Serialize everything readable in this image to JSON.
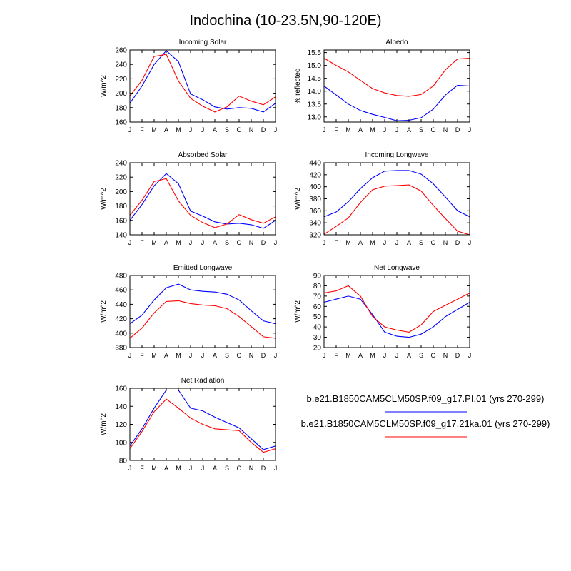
{
  "figure": {
    "title": "Indochina (10-23.5N,90-120E)"
  },
  "legend": {
    "entries": [
      {
        "label": "b.e21.B1850CAM5CLM50SP.f09_g17.PI.01 (yrs 270-299)",
        "color": "#0000ff"
      },
      {
        "label": "b.e21.B1850CAM5CLM50SP.f09_g17.21ka.01 (yrs 270-299)",
        "color": "#ff0000"
      }
    ]
  },
  "chart_data": [
    {
      "type": "line",
      "title": "Incoming Solar",
      "ylabel": "W/m^2",
      "ylim": [
        160,
        260
      ],
      "yticks": [
        160,
        180,
        200,
        220,
        240,
        260
      ],
      "ytick_labels": [
        "160",
        "180",
        "200",
        "220",
        "240",
        "260"
      ],
      "categories": [
        "J",
        "F",
        "M",
        "A",
        "M",
        "J",
        "J",
        "A",
        "S",
        "O",
        "N",
        "D",
        "J"
      ],
      "series": [
        {
          "name": "b.e21.B1850CAM5CLM50SP.f09_g17.PI.01 (yrs 270-299)",
          "color": "#0000ff",
          "values": [
            186,
            210,
            240,
            259,
            244,
            199,
            191,
            181,
            178,
            180,
            179,
            174,
            186
          ]
        },
        {
          "name": "b.e21.B1850CAM5CLM50SP.f09_g17.21ka.01 (yrs 270-299)",
          "color": "#ff0000",
          "values": [
            196,
            218,
            251,
            254,
            217,
            193,
            182,
            174,
            181,
            196,
            189,
            184,
            195
          ]
        }
      ]
    },
    {
      "type": "line",
      "title": "Albedo",
      "ylabel": "% reflected",
      "ylim": [
        12.8,
        15.6
      ],
      "yticks": [
        13.0,
        13.5,
        14.0,
        14.5,
        15.0,
        15.5
      ],
      "ytick_labels": [
        "13.0",
        "13.5",
        "14.0",
        "14.5",
        "15.0",
        "15.5"
      ],
      "categories": [
        "J",
        "F",
        "M",
        "A",
        "M",
        "J",
        "J",
        "A",
        "S",
        "O",
        "N",
        "D",
        "J"
      ],
      "series": [
        {
          "name": "b.e21.B1850CAM5CLM50SP.f09_g17.PI.01 (yrs 270-299)",
          "color": "#0000ff",
          "values": [
            14.2,
            13.85,
            13.5,
            13.25,
            13.1,
            12.98,
            12.85,
            12.87,
            12.97,
            13.3,
            13.85,
            14.23,
            14.2
          ]
        },
        {
          "name": "b.e21.B1850CAM5CLM50SP.f09_g17.21ka.01 (yrs 270-299)",
          "color": "#ff0000",
          "values": [
            15.28,
            15.0,
            14.75,
            14.42,
            14.1,
            13.93,
            13.83,
            13.8,
            13.87,
            14.2,
            14.83,
            15.25,
            15.28
          ]
        }
      ]
    },
    {
      "type": "line",
      "title": "Absorbed Solar",
      "ylabel": "W/m^2",
      "ylim": [
        140,
        240
      ],
      "yticks": [
        140,
        160,
        180,
        200,
        220,
        240
      ],
      "ytick_labels": [
        "140",
        "160",
        "180",
        "200",
        "220",
        "240"
      ],
      "categories": [
        "J",
        "F",
        "M",
        "A",
        "M",
        "J",
        "J",
        "A",
        "S",
        "O",
        "N",
        "D",
        "J"
      ],
      "series": [
        {
          "name": "b.e21.B1850CAM5CLM50SP.f09_g17.PI.01 (yrs 270-299)",
          "color": "#0000ff",
          "values": [
            160,
            182,
            208,
            225,
            211,
            173,
            166,
            158,
            155,
            156,
            154,
            149,
            160
          ]
        },
        {
          "name": "b.e21.B1850CAM5CLM50SP.f09_g17.21ka.01 (yrs 270-299)",
          "color": "#ff0000",
          "values": [
            167,
            188,
            214,
            218,
            187,
            167,
            157,
            150,
            155,
            168,
            161,
            156,
            165
          ]
        }
      ]
    },
    {
      "type": "line",
      "title": "Incoming Longwave",
      "ylabel": "W/m^2",
      "ylim": [
        320,
        440
      ],
      "yticks": [
        320,
        340,
        360,
        380,
        400,
        420,
        440
      ],
      "ytick_labels": [
        "320",
        "340",
        "360",
        "380",
        "400",
        "420",
        "440"
      ],
      "categories": [
        "J",
        "F",
        "M",
        "A",
        "M",
        "J",
        "J",
        "A",
        "S",
        "O",
        "N",
        "D",
        "J"
      ],
      "series": [
        {
          "name": "b.e21.B1850CAM5CLM50SP.f09_g17.PI.01 (yrs 270-299)",
          "color": "#0000ff",
          "values": [
            350,
            358,
            375,
            397,
            415,
            426,
            427,
            427,
            421,
            405,
            383,
            360,
            350
          ]
        },
        {
          "name": "b.e21.B1850CAM5CLM50SP.f09_g17.21ka.01 (yrs 270-299)",
          "color": "#ff0000",
          "values": [
            321,
            334,
            348,
            374,
            395,
            401,
            402,
            403,
            393,
            369,
            347,
            326,
            320
          ]
        }
      ]
    },
    {
      "type": "line",
      "title": "Emitted Longwave",
      "ylabel": "W/m^2",
      "ylim": [
        380,
        480
      ],
      "yticks": [
        380,
        400,
        420,
        440,
        460,
        480
      ],
      "ytick_labels": [
        "380",
        "400",
        "420",
        "440",
        "460",
        "480"
      ],
      "categories": [
        "J",
        "F",
        "M",
        "A",
        "M",
        "J",
        "J",
        "A",
        "S",
        "O",
        "N",
        "D",
        "J"
      ],
      "series": [
        {
          "name": "b.e21.B1850CAM5CLM50SP.f09_g17.PI.01 (yrs 270-299)",
          "color": "#0000ff",
          "values": [
            413,
            425,
            446,
            463,
            468,
            460,
            458,
            457,
            454,
            446,
            431,
            417,
            413
          ]
        },
        {
          "name": "b.e21.B1850CAM5CLM50SP.f09_g17.21ka.01 (yrs 270-299)",
          "color": "#ff0000",
          "values": [
            393,
            407,
            428,
            444,
            445,
            441,
            439,
            438,
            434,
            423,
            409,
            395,
            393
          ]
        }
      ]
    },
    {
      "type": "line",
      "title": "Net Longwave",
      "ylabel": "W/m^2",
      "ylim": [
        20,
        90
      ],
      "yticks": [
        20,
        30,
        40,
        50,
        60,
        70,
        80,
        90
      ],
      "ytick_labels": [
        "20",
        "30",
        "40",
        "50",
        "60",
        "70",
        "80",
        "90"
      ],
      "categories": [
        "J",
        "F",
        "M",
        "A",
        "M",
        "J",
        "J",
        "A",
        "S",
        "O",
        "N",
        "D",
        "J"
      ],
      "series": [
        {
          "name": "b.e21.B1850CAM5CLM50SP.f09_g17.PI.01 (yrs 270-299)",
          "color": "#0000ff",
          "values": [
            64,
            67,
            70,
            67,
            52,
            35,
            31,
            30,
            33,
            40,
            50,
            57,
            64
          ]
        },
        {
          "name": "b.e21.B1850CAM5CLM50SP.f09_g17.21ka.01 (yrs 270-299)",
          "color": "#ff0000",
          "values": [
            73,
            75,
            80,
            70,
            50,
            40,
            37,
            35,
            42,
            55,
            61,
            67,
            73
          ]
        }
      ]
    },
    {
      "type": "line",
      "title": "Net Radiation",
      "ylabel": "W/m^2",
      "ylim": [
        80,
        160
      ],
      "yticks": [
        80,
        100,
        120,
        140,
        160
      ],
      "ytick_labels": [
        "80",
        "100",
        "120",
        "140",
        "160"
      ],
      "categories": [
        "J",
        "F",
        "M",
        "A",
        "M",
        "J",
        "J",
        "A",
        "S",
        "O",
        "N",
        "D",
        "J"
      ],
      "series": [
        {
          "name": "b.e21.B1850CAM5CLM50SP.f09_g17.PI.01 (yrs 270-299)",
          "color": "#0000ff",
          "values": [
            96,
            115,
            138,
            158,
            158,
            138,
            135,
            128,
            122,
            116,
            104,
            92,
            96
          ]
        },
        {
          "name": "b.e21.B1850CAM5CLM50SP.f09_g17.21ka.01 (yrs 270-299)",
          "color": "#ff0000",
          "values": [
            93,
            112,
            134,
            148,
            138,
            127,
            120,
            115,
            114,
            113,
            100,
            89,
            93
          ]
        }
      ]
    }
  ]
}
